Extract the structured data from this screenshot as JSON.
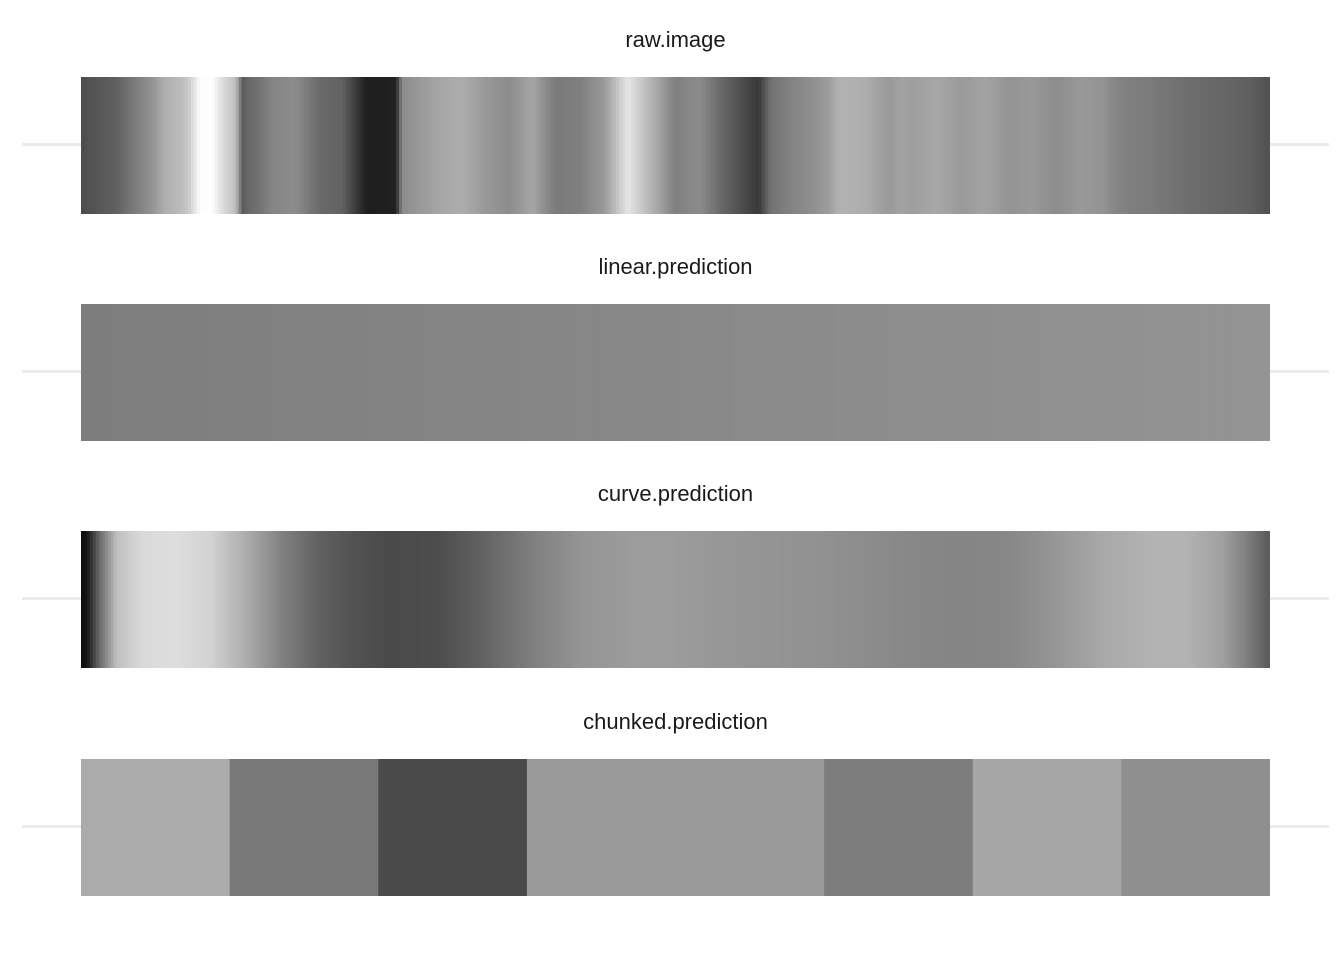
{
  "chart_data": [
    {
      "type": "heatmap",
      "title": "raw.image",
      "x": [
        0,
        0.03,
        0.06,
        0.07,
        0.08,
        0.09,
        0.1,
        0.11,
        0.12,
        0.13,
        0.136,
        0.14,
        0.15,
        0.16,
        0.18,
        0.2,
        0.22,
        0.24,
        0.255,
        0.265,
        0.27,
        0.3,
        0.32,
        0.33,
        0.34,
        0.36,
        0.37,
        0.38,
        0.39,
        0.4,
        0.42,
        0.44,
        0.46,
        0.48,
        0.5,
        0.52,
        0.54,
        0.55,
        0.56,
        0.57,
        0.58,
        0.6,
        0.62,
        0.63,
        0.635,
        0.64,
        0.66,
        0.68,
        0.69,
        0.7,
        0.72,
        0.74,
        0.76,
        0.78,
        0.8,
        0.82,
        0.84,
        0.86,
        0.87,
        0.88,
        0.9,
        0.92,
        0.94,
        0.96,
        0.98,
        1
      ],
      "brightness": [
        0.3,
        0.38,
        0.58,
        0.68,
        0.72,
        0.78,
        0.99,
        1.0,
        0.85,
        0.75,
        0.36,
        0.4,
        0.45,
        0.52,
        0.55,
        0.42,
        0.38,
        0.12,
        0.12,
        0.13,
        0.55,
        0.65,
        0.68,
        0.64,
        0.6,
        0.55,
        0.6,
        0.65,
        0.55,
        0.48,
        0.5,
        0.6,
        0.9,
        0.7,
        0.5,
        0.55,
        0.4,
        0.34,
        0.28,
        0.22,
        0.45,
        0.52,
        0.58,
        0.62,
        0.68,
        0.7,
        0.68,
        0.6,
        0.64,
        0.62,
        0.66,
        0.6,
        0.64,
        0.58,
        0.6,
        0.55,
        0.6,
        0.58,
        0.52,
        0.5,
        0.48,
        0.45,
        0.42,
        0.4,
        0.38,
        0.32
      ]
    },
    {
      "type": "heatmap",
      "title": "linear.prediction",
      "x": [
        0,
        1
      ],
      "brightness": [
        0.49,
        0.58
      ]
    },
    {
      "type": "heatmap",
      "title": "curve.prediction",
      "x": [
        0,
        0.005,
        0.015,
        0.03,
        0.05,
        0.08,
        0.11,
        0.14,
        0.17,
        0.2,
        0.23,
        0.26,
        0.3,
        0.34,
        0.38,
        0.42,
        0.46,
        0.5,
        0.54,
        0.58,
        0.62,
        0.66,
        0.7,
        0.74,
        0.78,
        0.82,
        0.86,
        0.9,
        0.93,
        0.96,
        0.98,
        1
      ],
      "brightness": [
        0.05,
        0.08,
        0.4,
        0.75,
        0.85,
        0.87,
        0.82,
        0.67,
        0.5,
        0.38,
        0.32,
        0.29,
        0.3,
        0.39,
        0.5,
        0.58,
        0.61,
        0.61,
        0.59,
        0.58,
        0.57,
        0.55,
        0.53,
        0.52,
        0.53,
        0.59,
        0.66,
        0.7,
        0.7,
        0.63,
        0.5,
        0.35
      ]
    },
    {
      "type": "heatmap",
      "title": "chunked.prediction",
      "categories": [
        1,
        2,
        3,
        4,
        5,
        6,
        7,
        8
      ],
      "brightness": [
        0.67,
        0.47,
        0.29,
        0.6,
        0.6,
        0.49,
        0.65,
        0.56
      ]
    }
  ]
}
